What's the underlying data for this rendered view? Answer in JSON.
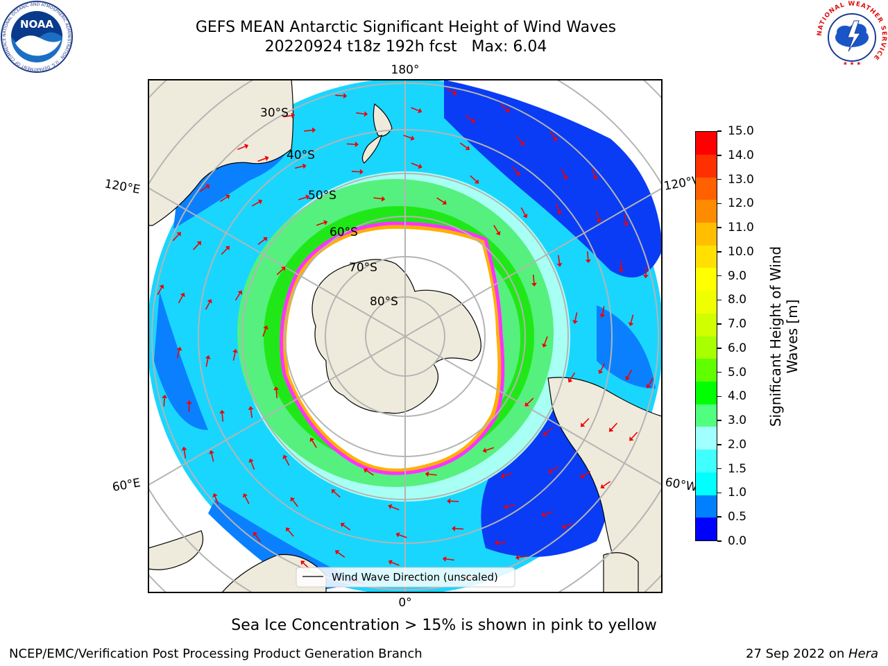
{
  "header": {
    "title_line1": "GEFS MEAN Antarctic Significant Height of Wind Waves",
    "title_line2": "20220924 t18z 192h fcst   Max: 6.04"
  },
  "logos": {
    "left": "NOAA",
    "left_ring": "NATIONAL OCEANIC AND ATMOSPHERIC ADMINISTRATION · U.S. DEPARTMENT OF COMMERCE",
    "right_ring": "NATIONAL WEATHER SERVICE"
  },
  "map": {
    "lon_labels": {
      "top": "180°",
      "left_upper": "120°E",
      "right_upper": "120°W",
      "left_lower": "60°E",
      "right_lower": "60°W",
      "bottom": "0°"
    },
    "lat_labels": [
      "30°S",
      "40°S",
      "50°S",
      "60°S",
      "70°S",
      "80°S"
    ],
    "legend": "Wind Wave Direction (unscaled)",
    "colors": {
      "land": "#efebdc",
      "ice_edge": "#ff33ff"
    }
  },
  "colorbar": {
    "label": "Significant Height of Wind Waves [m]",
    "ticks": [
      "15.0",
      "14.0",
      "13.0",
      "12.0",
      "11.0",
      "10.0",
      "9.0",
      "8.0",
      "7.0",
      "6.0",
      "5.0",
      "4.0",
      "3.0",
      "2.0",
      "1.5",
      "1.0",
      "0.5",
      "0.0"
    ],
    "colors_bottom_to_top": [
      "#0000ff",
      "#0080ff",
      "#00ffff",
      "#40ffff",
      "#a0ffff",
      "#50ff80",
      "#00ff00",
      "#60ff00",
      "#a8ff00",
      "#d0ff00",
      "#f0ff00",
      "#ffff00",
      "#ffe000",
      "#ffbf00",
      "#ff8c00",
      "#ff6000",
      "#ff3000",
      "#ff0000"
    ]
  },
  "notes": {
    "sea_ice": "Sea Ice Concentration > 15% is shown in pink to yellow"
  },
  "footer": {
    "left": "NCEP/EMC/Verification Post Processing Product Generation Branch",
    "right_date": "27 Sep 2022 on ",
    "right_machine": "Hera"
  }
}
